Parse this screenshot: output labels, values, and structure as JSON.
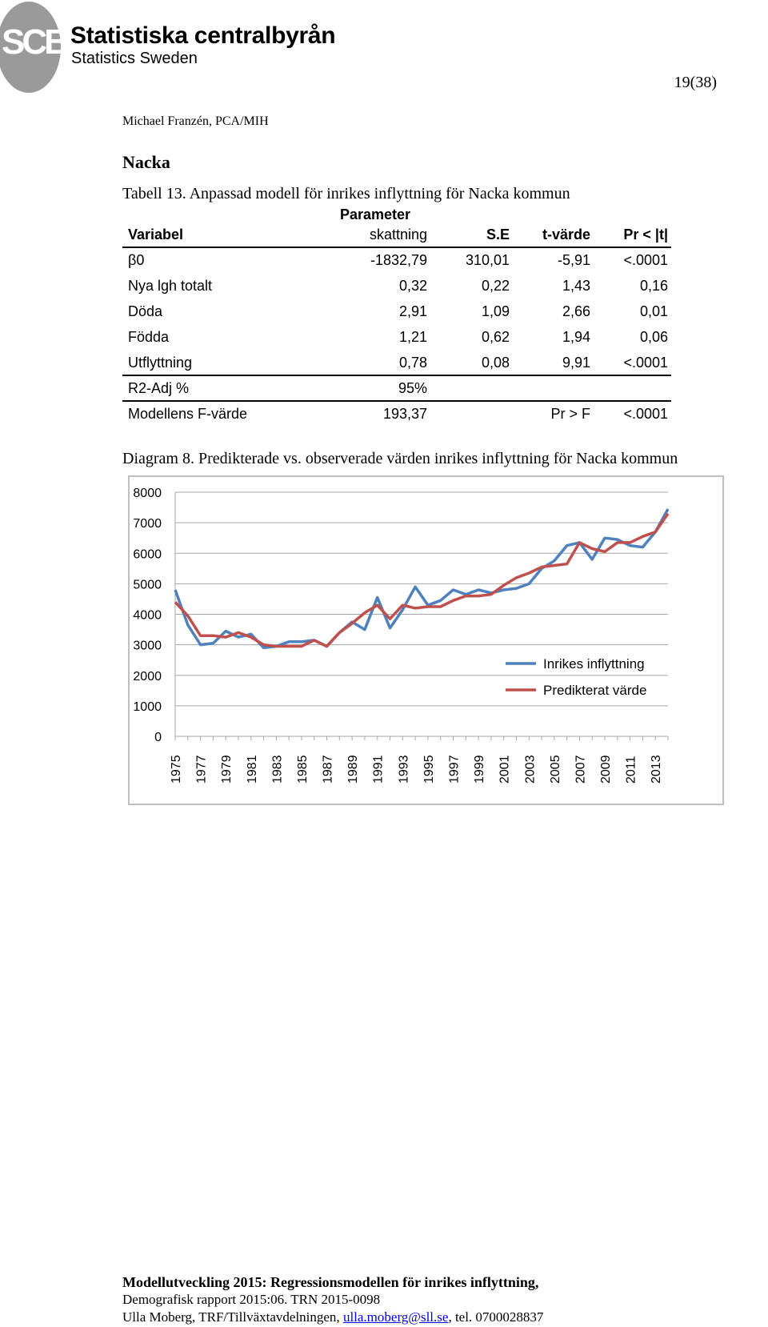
{
  "header": {
    "logo_mark": "SCB",
    "org_name": "Statistiska centralbyrån",
    "org_name_en": "Statistics Sweden",
    "page_number": "19(38)",
    "author": "Michael Franzén, PCA/MIH"
  },
  "section_title": "Nacka",
  "table": {
    "caption": "Tabell 13. Anpassad modell för inrikes inflyttning för Nacka  kommun",
    "headers": {
      "variable": "Variabel",
      "param_line1": "Parameter",
      "param_line2": "skattning",
      "se": "S.E",
      "t": "t-värde",
      "p": "Pr < |t|"
    },
    "rows": [
      {
        "variable": "β0",
        "estimate": "-1832,79",
        "se": "310,01",
        "t": "-5,91",
        "p": "<.0001"
      },
      {
        "variable": "Nya lgh totalt",
        "estimate": "0,32",
        "se": "0,22",
        "t": "1,43",
        "p": "0,16"
      },
      {
        "variable": "Döda",
        "estimate": "2,91",
        "se": "1,09",
        "t": "2,66",
        "p": "0,01"
      },
      {
        "variable": "Födda",
        "estimate": "1,21",
        "se": "0,62",
        "t": "1,94",
        "p": "0,06"
      },
      {
        "variable": "Utflyttning",
        "estimate": "0,78",
        "se": "0,08",
        "t": "9,91",
        "p": "<.0001"
      }
    ],
    "r2_label": "R2-Adj %",
    "r2_value": "95%",
    "f_label": "Modellens F-värde",
    "f_value": "193,37",
    "f_p_label": "Pr > F",
    "f_p_value": "<.0001"
  },
  "chart_caption": "Diagram 8. Predikterade vs. observerade värden inrikes inflyttning för Nacka kommun",
  "chart_data": {
    "type": "line",
    "ylim": [
      0,
      8000
    ],
    "yticks": [
      0,
      1000,
      2000,
      3000,
      4000,
      5000,
      6000,
      7000,
      8000
    ],
    "x": [
      1975,
      1976,
      1977,
      1978,
      1979,
      1980,
      1981,
      1982,
      1983,
      1984,
      1985,
      1986,
      1987,
      1988,
      1989,
      1990,
      1991,
      1992,
      1993,
      1994,
      1995,
      1996,
      1997,
      1998,
      1999,
      2000,
      2001,
      2002,
      2003,
      2004,
      2005,
      2006,
      2007,
      2008,
      2009,
      2010,
      2011,
      2012,
      2013,
      2014
    ],
    "xtick_labels": [
      "1975",
      "1977",
      "1979",
      "1981",
      "1983",
      "1985",
      "1987",
      "1989",
      "1991",
      "1993",
      "1995",
      "1997",
      "1999",
      "2001",
      "2003",
      "2005",
      "2007",
      "2009",
      "2011",
      "2013"
    ],
    "grid": true,
    "legend_position": "right",
    "series": [
      {
        "name": "Inrikes inflyttning",
        "color": "#4f81bd",
        "values": [
          4800,
          3650,
          3000,
          3050,
          3450,
          3250,
          3350,
          2900,
          2950,
          3100,
          3100,
          3150,
          2950,
          3400,
          3750,
          3500,
          4550,
          3550,
          4150,
          4900,
          4300,
          4450,
          4800,
          4650,
          4800,
          4700,
          4800,
          4850,
          5000,
          5500,
          5750,
          6250,
          6350,
          5800,
          6500,
          6450,
          6250,
          6200,
          6700,
          7450
        ]
      },
      {
        "name": "Predikterat värde",
        "color": "#c0504d",
        "values": [
          4400,
          3950,
          3300,
          3300,
          3250,
          3400,
          3250,
          3000,
          2950,
          2950,
          2950,
          3150,
          2950,
          3400,
          3700,
          4050,
          4300,
          3850,
          4300,
          4200,
          4250,
          4250,
          4450,
          4600,
          4600,
          4650,
          4950,
          5200,
          5350,
          5550,
          5600,
          5650,
          6350,
          6150,
          6050,
          6350,
          6350,
          6550,
          6700,
          7300
        ]
      }
    ]
  },
  "footer": {
    "line1": "Modellutveckling 2015: Regressionsmodellen för inrikes inflyttning,",
    "line2": "Demografisk rapport 2015:06. TRN 2015-0098",
    "line3_prefix": "Ulla Moberg, TRF/Tillväxtavdelningen, ",
    "email": "ulla.moberg@sll.se",
    "line3_suffix": ", tel. 0700028837"
  }
}
